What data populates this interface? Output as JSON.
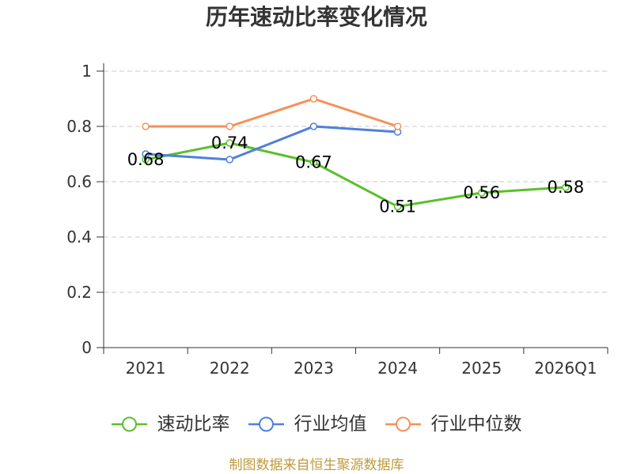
{
  "chart_data": {
    "type": "line",
    "title": "历年速动比率变化情况",
    "xlabel": "",
    "ylabel": "",
    "categories": [
      "2021",
      "2022",
      "2023",
      "2024",
      "2025",
      "2026Q1"
    ],
    "ylim": [
      0,
      1
    ],
    "yticks": [
      0,
      0.2,
      0.4,
      0.6,
      0.8,
      1
    ],
    "ytick_labels": [
      "0",
      "0.2",
      "0.4",
      "0.6",
      "0.8",
      "1"
    ],
    "grid": true,
    "legend_position": "bottom",
    "series": [
      {
        "name": "速动比率",
        "color": "#5ac02c",
        "values": [
          0.68,
          0.74,
          0.67,
          0.51,
          0.56,
          0.58
        ],
        "show_labels": true
      },
      {
        "name": "行业均值",
        "color": "#4f80dc",
        "values": [
          0.7,
          0.68,
          0.8,
          0.78,
          null,
          null
        ],
        "show_labels": false
      },
      {
        "name": "行业中位数",
        "color": "#f5915a",
        "values": [
          0.8,
          0.8,
          0.9,
          0.8,
          null,
          null
        ],
        "show_labels": false
      }
    ]
  },
  "source_note": "制图数据来自恒生聚源数据库",
  "colors": {
    "axis": "#333333",
    "grid": "#c8c8c8",
    "data_label": "#000000",
    "source_note": "#bf9b3e"
  }
}
